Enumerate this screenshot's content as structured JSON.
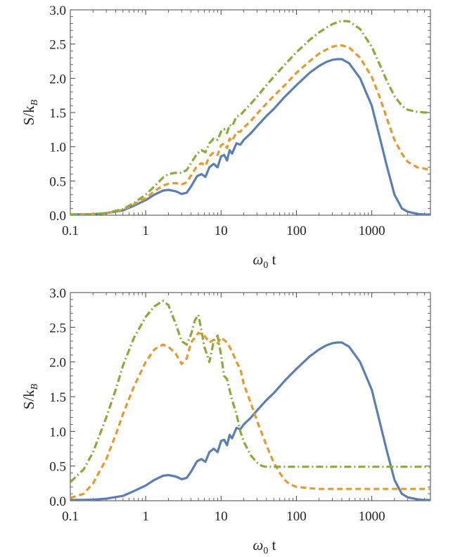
{
  "colors": {
    "blue": "#5b7fb3",
    "orange": "#e69a2e",
    "green": "#8aaa3b",
    "axis": "#444444"
  },
  "chart_data": [
    {
      "type": "line",
      "xscale": "log",
      "xlim": [
        0.1,
        6000
      ],
      "ylim": [
        0,
        3.0
      ],
      "xlabel_main": "ω",
      "xlabel_sub": "0",
      "xlabel_tail": " t",
      "ylabel_main": "S/k",
      "ylabel_sub": "B",
      "xticks": [
        {
          "v": 0.1,
          "label": "0.1"
        },
        {
          "v": 1,
          "label": "1"
        },
        {
          "v": 10,
          "label": "10"
        },
        {
          "v": 100,
          "label": "100"
        },
        {
          "v": 1000,
          "label": "1000"
        }
      ],
      "yticks": [
        {
          "v": 0.0,
          "label": "0.0"
        },
        {
          "v": 0.5,
          "label": "0.5"
        },
        {
          "v": 1.0,
          "label": "1.0"
        },
        {
          "v": 1.5,
          "label": "1.5"
        },
        {
          "v": 2.0,
          "label": "2.0"
        },
        {
          "v": 2.5,
          "label": "2.5"
        },
        {
          "v": 3.0,
          "label": "3.0"
        }
      ],
      "series": [
        {
          "name": "solid",
          "color": "#5b7fb3",
          "dash": "",
          "x": [
            0.1,
            0.2,
            0.3,
            0.5,
            0.7,
            1.0,
            1.3,
            1.7,
            2.0,
            2.5,
            3.0,
            3.5,
            4.0,
            4.8,
            5.5,
            6.2,
            7.0,
            8.0,
            9.0,
            10,
            11,
            12,
            13,
            14,
            16,
            18,
            20,
            25,
            30,
            40,
            50,
            70,
            100,
            150,
            200,
            250,
            300,
            350,
            400,
            500,
            700,
            1000,
            1300,
            1600,
            2000,
            2500,
            3000,
            4000,
            5000,
            6000
          ],
          "y": [
            0.01,
            0.015,
            0.03,
            0.07,
            0.14,
            0.22,
            0.3,
            0.36,
            0.37,
            0.35,
            0.31,
            0.33,
            0.42,
            0.57,
            0.6,
            0.56,
            0.7,
            0.75,
            0.7,
            0.86,
            0.88,
            0.8,
            0.95,
            0.9,
            1.05,
            1.03,
            1.1,
            1.2,
            1.3,
            1.45,
            1.55,
            1.73,
            1.9,
            2.08,
            2.18,
            2.24,
            2.27,
            2.28,
            2.28,
            2.22,
            2.0,
            1.6,
            1.1,
            0.7,
            0.3,
            0.1,
            0.05,
            0.02,
            0.01,
            0.01
          ]
        },
        {
          "name": "dashed",
          "color": "#e69a2e",
          "dash": "8,5",
          "x": [
            0.1,
            0.2,
            0.3,
            0.5,
            0.7,
            1.0,
            1.3,
            1.7,
            2.0,
            2.5,
            3.0,
            3.5,
            4.0,
            4.8,
            5.5,
            6.2,
            7.0,
            8.0,
            9.0,
            10,
            11,
            12,
            13,
            14,
            16,
            18,
            20,
            25,
            30,
            40,
            50,
            70,
            100,
            150,
            200,
            250,
            300,
            350,
            400,
            500,
            700,
            1000,
            1300,
            1600,
            2000,
            2500,
            3000,
            4000,
            5000,
            6000
          ],
          "y": [
            0.01,
            0.015,
            0.03,
            0.08,
            0.16,
            0.25,
            0.35,
            0.43,
            0.46,
            0.47,
            0.45,
            0.48,
            0.58,
            0.72,
            0.76,
            0.72,
            0.86,
            0.92,
            0.88,
            1.02,
            1.05,
            0.98,
            1.12,
            1.08,
            1.22,
            1.22,
            1.28,
            1.38,
            1.48,
            1.63,
            1.74,
            1.9,
            2.08,
            2.25,
            2.36,
            2.42,
            2.46,
            2.48,
            2.48,
            2.45,
            2.3,
            2.02,
            1.7,
            1.4,
            1.1,
            0.9,
            0.78,
            0.7,
            0.68,
            0.66
          ]
        },
        {
          "name": "dash-dot",
          "color": "#8aaa3b",
          "dash": "10,4,2,4",
          "x": [
            0.1,
            0.2,
            0.3,
            0.5,
            0.7,
            1.0,
            1.3,
            1.7,
            2.0,
            2.5,
            3.0,
            3.5,
            4.0,
            4.8,
            5.5,
            6.2,
            7.0,
            8.0,
            9.0,
            10,
            11,
            12,
            13,
            14,
            16,
            18,
            20,
            25,
            30,
            40,
            50,
            70,
            100,
            150,
            200,
            250,
            300,
            350,
            400,
            500,
            700,
            1000,
            1300,
            1600,
            2000,
            2500,
            3000,
            4000,
            5000,
            6000
          ],
          "y": [
            0.01,
            0.015,
            0.03,
            0.09,
            0.18,
            0.3,
            0.42,
            0.55,
            0.6,
            0.62,
            0.62,
            0.66,
            0.76,
            0.9,
            0.95,
            0.92,
            1.05,
            1.12,
            1.1,
            1.22,
            1.26,
            1.2,
            1.32,
            1.3,
            1.44,
            1.46,
            1.52,
            1.63,
            1.73,
            1.9,
            2.02,
            2.2,
            2.38,
            2.56,
            2.67,
            2.74,
            2.79,
            2.82,
            2.84,
            2.83,
            2.72,
            2.46,
            2.18,
            1.95,
            1.74,
            1.6,
            1.54,
            1.51,
            1.5,
            1.5
          ]
        }
      ]
    },
    {
      "type": "line",
      "xscale": "log",
      "xlim": [
        0.1,
        6000
      ],
      "ylim": [
        0,
        3.0
      ],
      "xlabel_main": "ω",
      "xlabel_sub": "0",
      "xlabel_tail": " t",
      "ylabel_main": "S/k",
      "ylabel_sub": "B",
      "xticks": [
        {
          "v": 0.1,
          "label": "0.1"
        },
        {
          "v": 1,
          "label": "1"
        },
        {
          "v": 10,
          "label": "10"
        },
        {
          "v": 100,
          "label": "100"
        },
        {
          "v": 1000,
          "label": "1000"
        }
      ],
      "yticks": [
        {
          "v": 0.0,
          "label": "0.0"
        },
        {
          "v": 0.5,
          "label": "0.5"
        },
        {
          "v": 1.0,
          "label": "1.0"
        },
        {
          "v": 1.5,
          "label": "1.5"
        },
        {
          "v": 2.0,
          "label": "2.0"
        },
        {
          "v": 2.5,
          "label": "2.5"
        },
        {
          "v": 3.0,
          "label": "3.0"
        }
      ],
      "series": [
        {
          "name": "solid",
          "color": "#5b7fb3",
          "dash": "",
          "x": [
            0.1,
            0.2,
            0.3,
            0.5,
            0.7,
            1.0,
            1.3,
            1.7,
            2.0,
            2.5,
            3.0,
            3.5,
            4.0,
            4.8,
            5.5,
            6.2,
            7.0,
            8.0,
            9.0,
            10,
            11,
            12,
            13,
            14,
            16,
            18,
            20,
            25,
            30,
            40,
            50,
            70,
            100,
            150,
            200,
            250,
            300,
            350,
            400,
            500,
            700,
            1000,
            1300,
            1600,
            2000,
            2500,
            3000,
            4000,
            5000,
            6000
          ],
          "y": [
            0.01,
            0.015,
            0.03,
            0.07,
            0.14,
            0.22,
            0.3,
            0.36,
            0.37,
            0.35,
            0.31,
            0.33,
            0.42,
            0.57,
            0.6,
            0.56,
            0.7,
            0.75,
            0.7,
            0.86,
            0.88,
            0.8,
            0.95,
            0.9,
            1.05,
            1.03,
            1.1,
            1.2,
            1.3,
            1.45,
            1.55,
            1.73,
            1.9,
            2.08,
            2.18,
            2.24,
            2.27,
            2.28,
            2.28,
            2.22,
            2.0,
            1.6,
            1.1,
            0.7,
            0.3,
            0.1,
            0.05,
            0.02,
            0.01,
            0.01
          ]
        },
        {
          "name": "dashed",
          "color": "#e69a2e",
          "dash": "8,5",
          "x": [
            0.1,
            0.15,
            0.2,
            0.3,
            0.4,
            0.5,
            0.7,
            1.0,
            1.3,
            1.7,
            2.0,
            2.5,
            3.0,
            3.5,
            4.0,
            5.0,
            6.0,
            7.0,
            8.0,
            9.0,
            10,
            12,
            14,
            16,
            18,
            20,
            25,
            30,
            40,
            50,
            60,
            70,
            80,
            100,
            150,
            200,
            500,
            1000,
            2000,
            6000
          ],
          "y": [
            0.04,
            0.1,
            0.25,
            0.6,
            0.95,
            1.25,
            1.65,
            2.0,
            2.18,
            2.25,
            2.22,
            2.12,
            1.97,
            2.05,
            2.28,
            2.42,
            2.38,
            2.28,
            2.32,
            2.27,
            2.35,
            2.28,
            2.15,
            2.0,
            1.9,
            1.68,
            1.4,
            1.15,
            0.8,
            0.55,
            0.4,
            0.3,
            0.24,
            0.2,
            0.18,
            0.17,
            0.17,
            0.17,
            0.17,
            0.17
          ]
        },
        {
          "name": "dash-dot",
          "color": "#8aaa3b",
          "dash": "10,4,2,4",
          "x": [
            0.1,
            0.15,
            0.2,
            0.3,
            0.4,
            0.5,
            0.7,
            1.0,
            1.3,
            1.7,
            2.0,
            2.5,
            3.0,
            3.5,
            4.0,
            4.5,
            5.0,
            5.5,
            6.0,
            7.0,
            8.0,
            9.0,
            10,
            11,
            12,
            14,
            16,
            18,
            20,
            25,
            30,
            35,
            40,
            50,
            70,
            100,
            200,
            500,
            1000,
            2000,
            6000
          ],
          "y": [
            0.27,
            0.45,
            0.7,
            1.2,
            1.6,
            1.95,
            2.35,
            2.65,
            2.8,
            2.88,
            2.82,
            2.55,
            2.3,
            2.25,
            2.4,
            2.6,
            2.68,
            2.45,
            2.22,
            2.0,
            2.3,
            2.38,
            2.1,
            1.8,
            1.75,
            1.45,
            1.25,
            1.0,
            0.85,
            0.65,
            0.55,
            0.5,
            0.49,
            0.49,
            0.49,
            0.49,
            0.49,
            0.49,
            0.49,
            0.49,
            0.49
          ]
        }
      ]
    }
  ]
}
